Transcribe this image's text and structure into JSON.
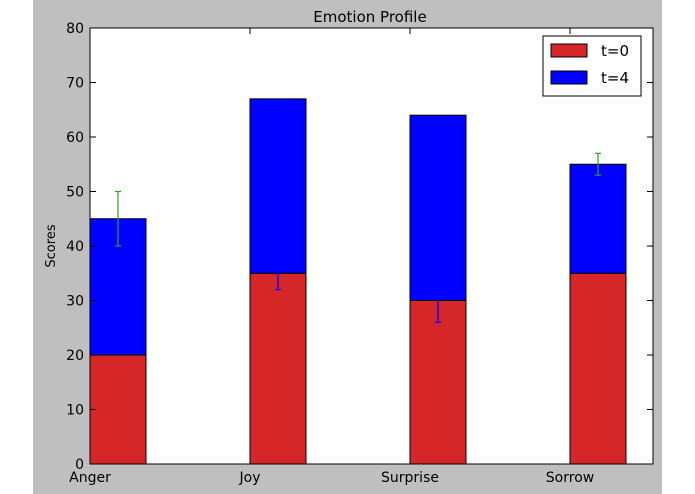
{
  "chart_data": {
    "type": "bar",
    "title": "Emotion Profile",
    "xlabel": "",
    "ylabel": "Scores",
    "ylim": [
      0,
      80
    ],
    "yticks": [
      0,
      10,
      20,
      30,
      40,
      50,
      60,
      70,
      80
    ],
    "categories": [
      "Anger",
      "Joy",
      "Surprise",
      "Sorrow"
    ],
    "stacked": true,
    "legend_position": "top-right",
    "series": [
      {
        "name": "t=0",
        "color": "#d62728",
        "values": [
          20,
          35,
          30,
          35
        ],
        "errors": [
          0,
          3,
          4,
          0
        ],
        "error_color": "#0000ff"
      },
      {
        "name": "t=4",
        "color": "#0000ff",
        "values": [
          25,
          32,
          34,
          20
        ],
        "errors": [
          5,
          0,
          0,
          2
        ],
        "error_color": "#2ca02c"
      }
    ]
  }
}
